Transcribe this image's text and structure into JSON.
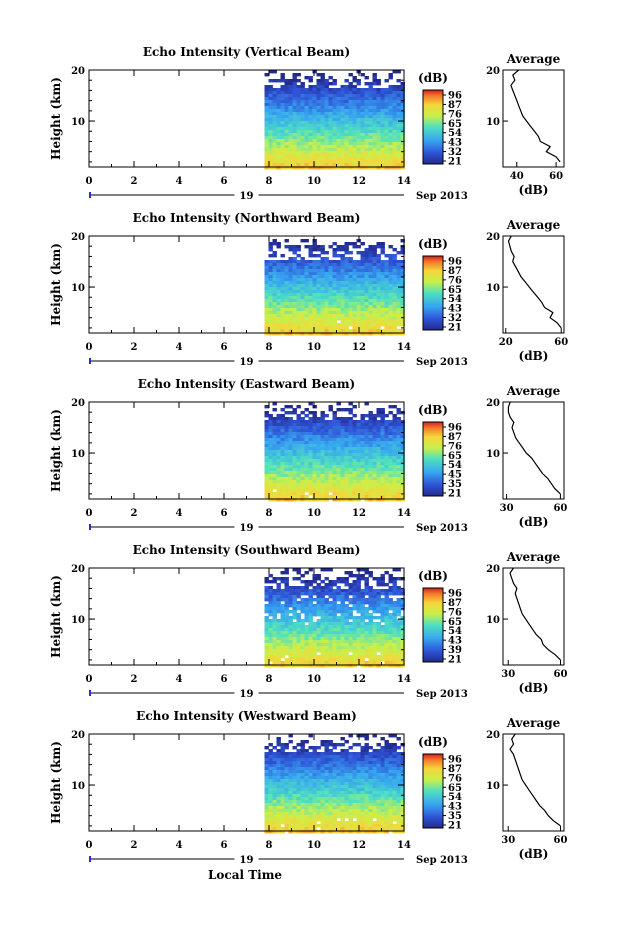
{
  "figure": {
    "x_axis_label": "Local Time",
    "date_label": "19",
    "month_label": "Sep 2013"
  },
  "chart_data": [
    {
      "type": "heatmap",
      "title": "Echo Intensity (Vertical Beam)",
      "ylabel": "Height (km)",
      "xlim": [
        0,
        14
      ],
      "ylim": [
        1,
        20
      ],
      "x_ticks": [
        "0",
        "2",
        "4",
        "6",
        "8",
        "10",
        "12",
        "14"
      ],
      "y_ticks": [
        "20",
        "10"
      ],
      "data_start_hour": 7.8,
      "colorbar": {
        "label": "(dB)",
        "ticks": [
          "96",
          "87",
          "76",
          "65",
          "54",
          "43",
          "32",
          "21"
        ]
      },
      "profile": {
        "title": "Average",
        "xlabel": "(dB)",
        "x_ticks": [
          "40",
          "60"
        ],
        "xlim": [
          33,
          64
        ],
        "heights": [
          2,
          3,
          4,
          5,
          6,
          7,
          8,
          9,
          10,
          11,
          12,
          13,
          14,
          15,
          16,
          17,
          18,
          19,
          20
        ],
        "values": [
          62,
          60,
          55,
          57,
          52,
          51,
          49,
          47,
          45,
          43,
          42,
          41,
          40,
          39,
          38,
          37,
          39,
          38,
          41
        ]
      }
    },
    {
      "type": "heatmap",
      "title": "Echo Intensity (Northward Beam)",
      "ylabel": "Height (km)",
      "xlim": [
        0,
        14
      ],
      "ylim": [
        1,
        20
      ],
      "x_ticks": [
        "0",
        "2",
        "4",
        "6",
        "8",
        "10",
        "12",
        "14"
      ],
      "y_ticks": [
        "20",
        "10"
      ],
      "data_start_hour": 7.8,
      "colorbar": {
        "label": "(dB)",
        "ticks": [
          "96",
          "87",
          "76",
          "65",
          "54",
          "43",
          "32",
          "21"
        ]
      },
      "profile": {
        "title": "Average",
        "xlabel": "(dB)",
        "x_ticks": [
          "20",
          "60"
        ],
        "xlim": [
          18,
          62
        ],
        "heights": [
          2,
          3,
          4,
          5,
          6,
          7,
          8,
          9,
          10,
          11,
          12,
          13,
          14,
          15,
          16,
          17,
          18,
          19,
          20
        ],
        "values": [
          60,
          57,
          52,
          54,
          48,
          46,
          43,
          40,
          37,
          34,
          31,
          29,
          27,
          25,
          26,
          24,
          23,
          22,
          24
        ]
      }
    },
    {
      "type": "heatmap",
      "title": "Echo Intensity (Eastward Beam)",
      "ylabel": "Height (km)",
      "xlim": [
        0,
        14
      ],
      "ylim": [
        1,
        20
      ],
      "x_ticks": [
        "0",
        "2",
        "4",
        "6",
        "8",
        "10",
        "12",
        "14"
      ],
      "y_ticks": [
        "20",
        "10"
      ],
      "data_start_hour": 7.8,
      "colorbar": {
        "label": "(dB)",
        "ticks": [
          "96",
          "87",
          "76",
          "65",
          "54",
          "45",
          "35",
          "21"
        ]
      },
      "profile": {
        "title": "Average",
        "xlabel": "(dB)",
        "x_ticks": [
          "30",
          "60"
        ],
        "xlim": [
          28,
          62
        ],
        "heights": [
          2,
          3,
          4,
          5,
          6,
          7,
          8,
          9,
          10,
          11,
          12,
          13,
          14,
          15,
          16,
          17,
          18,
          19,
          20
        ],
        "values": [
          60,
          57,
          55,
          53,
          50,
          48,
          46,
          44,
          41,
          39,
          37,
          35,
          34,
          33,
          34,
          32,
          31,
          31,
          32
        ]
      }
    },
    {
      "type": "heatmap",
      "title": "Echo Intensity (Southward Beam)",
      "ylabel": "Height (km)",
      "xlim": [
        0,
        14
      ],
      "ylim": [
        1,
        20
      ],
      "x_ticks": [
        "0",
        "2",
        "4",
        "6",
        "8",
        "10",
        "12",
        "14"
      ],
      "y_ticks": [
        "20",
        "10"
      ],
      "data_start_hour": 7.8,
      "colorbar": {
        "label": "(dB)",
        "ticks": [
          "96",
          "87",
          "76",
          "65",
          "54",
          "43",
          "39",
          "21"
        ]
      },
      "profile": {
        "title": "Average",
        "xlabel": "(dB)",
        "x_ticks": [
          "30",
          "60"
        ],
        "xlim": [
          27,
          62
        ],
        "heights": [
          2,
          3,
          4,
          5,
          6,
          7,
          8,
          9,
          10,
          11,
          12,
          13,
          14,
          15,
          16,
          17,
          18,
          19,
          20
        ],
        "values": [
          60,
          57,
          53,
          50,
          49,
          46,
          44,
          42,
          40,
          38,
          37,
          36,
          35,
          34,
          35,
          33,
          32,
          31,
          33
        ]
      }
    },
    {
      "type": "heatmap",
      "title": "Echo Intensity (Westward Beam)",
      "ylabel": "Height (km)",
      "xlim": [
        0,
        14
      ],
      "ylim": [
        1,
        20
      ],
      "x_ticks": [
        "0",
        "2",
        "4",
        "6",
        "8",
        "10",
        "12",
        "14"
      ],
      "y_ticks": [
        "20",
        "10"
      ],
      "data_start_hour": 7.8,
      "colorbar": {
        "label": "(dB)",
        "ticks": [
          "96",
          "87",
          "76",
          "65",
          "54",
          "43",
          "35",
          "21"
        ]
      },
      "profile": {
        "title": "Average",
        "xlabel": "(dB)",
        "x_ticks": [
          "30",
          "60"
        ],
        "xlim": [
          27,
          62
        ],
        "heights": [
          2,
          3,
          4,
          5,
          6,
          7,
          8,
          9,
          10,
          11,
          12,
          13,
          14,
          15,
          16,
          17,
          18,
          19,
          20
        ],
        "values": [
          60,
          56,
          53,
          51,
          48,
          46,
          44,
          42,
          40,
          38,
          37,
          36,
          35,
          34,
          33,
          31,
          33,
          32,
          34
        ]
      }
    }
  ]
}
